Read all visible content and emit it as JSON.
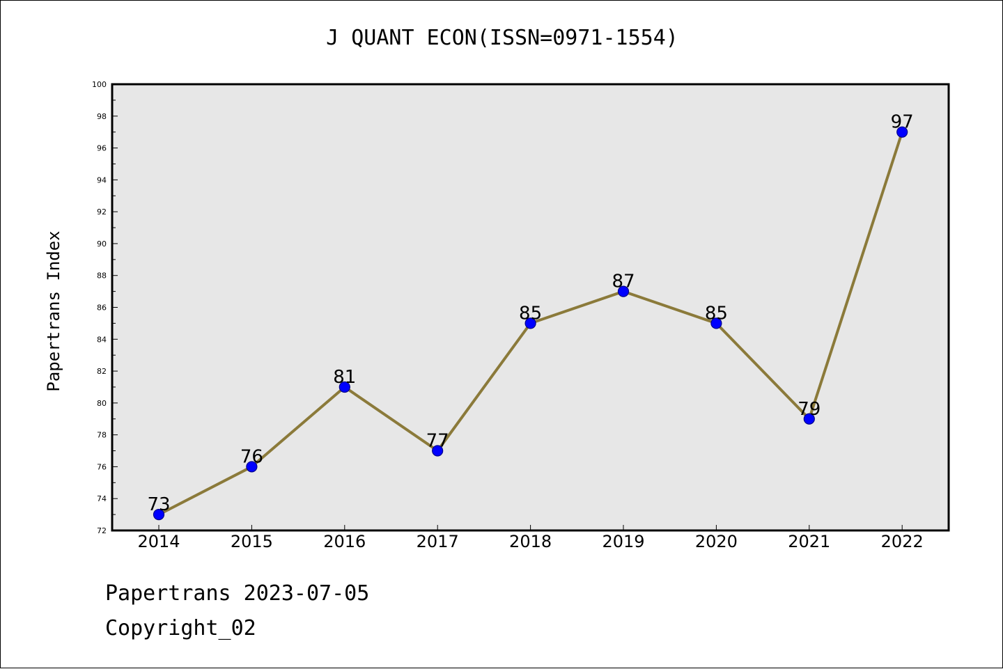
{
  "colors": {
    "plot_background": "#e7e7e7",
    "line": "#8b7a3a",
    "marker_fill": "#0000ff",
    "marker_edge": "#00008b",
    "axis": "#000000"
  },
  "footer": {
    "date_line": "Papertrans 2023-07-05",
    "copyright_line": "Copyright_02"
  },
  "chart_data": {
    "type": "line",
    "title": "J QUANT ECON(ISSN=0971-1554)",
    "xlabel": "",
    "ylabel": "Papertrans Index",
    "categories": [
      "2014",
      "2015",
      "2016",
      "2017",
      "2018",
      "2019",
      "2020",
      "2021",
      "2022"
    ],
    "values": [
      73,
      76,
      81,
      77,
      85,
      87,
      85,
      79,
      97
    ],
    "ylim": [
      72,
      100
    ],
    "yticks": [
      72,
      74,
      76,
      78,
      80,
      82,
      84,
      86,
      88,
      90,
      92,
      94,
      96,
      98,
      100
    ],
    "grid": false,
    "data_labels": true
  }
}
